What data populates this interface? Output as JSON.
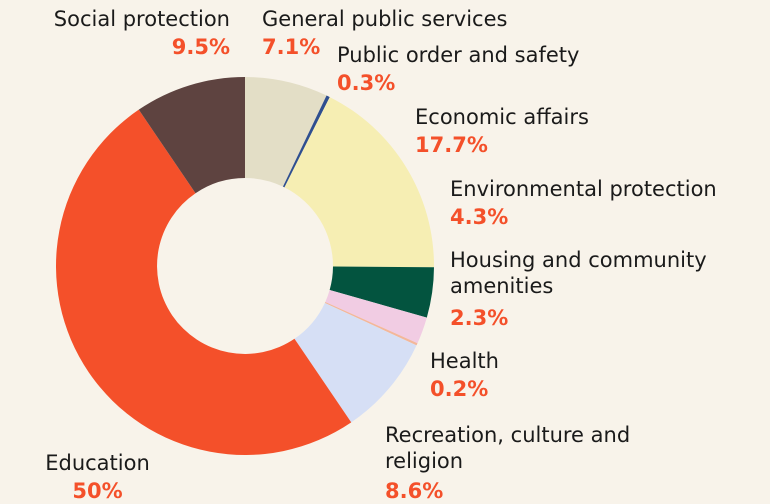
{
  "chart_data": {
    "type": "donut",
    "categories": [
      "General public services",
      "Public order and safety",
      "Economic affairs",
      "Environmental protection",
      "Housing and community amenities",
      "Health",
      "Recreation, culture and religion",
      "Education",
      "Social protection"
    ],
    "values": [
      7.1,
      0.3,
      17.7,
      4.3,
      2.3,
      0.2,
      8.6,
      50,
      9.5
    ],
    "value_labels": [
      "7.1%",
      "0.3%",
      "17.7%",
      "4.3%",
      "2.3%",
      "0.2%",
      "8.6%",
      "50%",
      "9.5%"
    ],
    "colors": [
      "#e3dec6",
      "#2f4f8f",
      "#f6eeb3",
      "#03543f",
      "#f1cce3",
      "#f3b79a",
      "#d6dff5",
      "#f4502a",
      "#5e4340"
    ]
  }
}
